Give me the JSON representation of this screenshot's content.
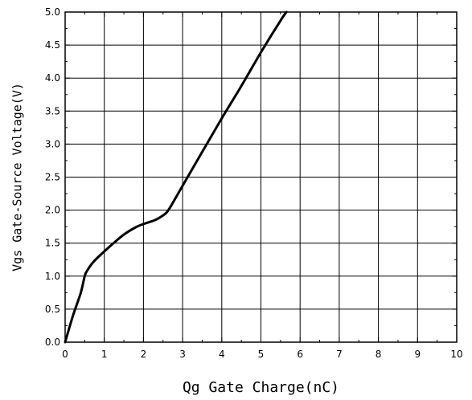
{
  "chart_data": {
    "type": "line",
    "title": "",
    "xlabel": "Qg Gate Charge(nC)",
    "ylabel": "Vgs Gate-Source Voltage(V)",
    "xlim": [
      0,
      10
    ],
    "ylim": [
      0,
      5
    ],
    "xticks": [
      "0",
      "1",
      "2",
      "3",
      "4",
      "5",
      "6",
      "7",
      "8",
      "9",
      "10"
    ],
    "yticks": [
      "0.0",
      "0.5",
      "1.0",
      "1.5",
      "2.0",
      "2.5",
      "3.0",
      "3.5",
      "4.0",
      "4.5",
      "5.0"
    ],
    "grid": true,
    "legend": "none",
    "line_color": "#000000",
    "series": [
      {
        "x": [
          0,
          0.2,
          0.4,
          0.5,
          0.55,
          0.7,
          0.9,
          1.2,
          1.5,
          1.8,
          2.0,
          2.3,
          2.5,
          2.6,
          2.7,
          3.0,
          3.5,
          4.0,
          4.5,
          5.0,
          5.5,
          5.65
        ],
        "y": [
          0.0,
          0.4,
          0.75,
          1.0,
          1.07,
          1.2,
          1.32,
          1.48,
          1.63,
          1.74,
          1.79,
          1.85,
          1.92,
          1.97,
          2.06,
          2.37,
          2.88,
          3.39,
          3.88,
          4.39,
          4.87,
          5.0
        ]
      }
    ]
  }
}
